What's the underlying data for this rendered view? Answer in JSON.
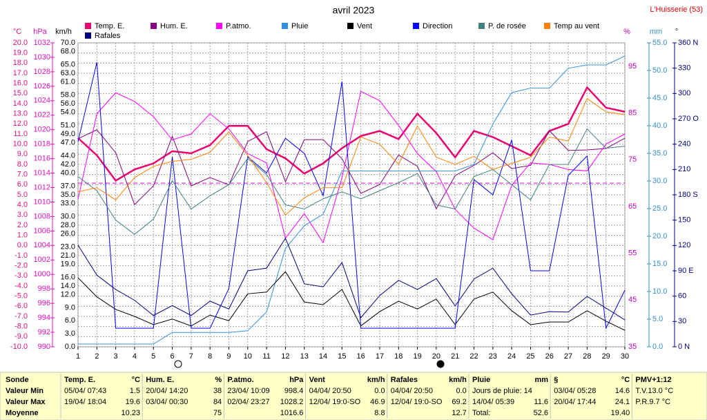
{
  "chart_data": {
    "type": "line",
    "title": "avril 2023",
    "subtitle": "L'Huisserie (53)",
    "x": [
      1,
      2,
      3,
      4,
      5,
      6,
      7,
      8,
      9,
      10,
      11,
      12,
      13,
      14,
      15,
      16,
      17,
      18,
      19,
      20,
      21,
      22,
      23,
      24,
      25,
      26,
      27,
      28,
      29,
      30
    ],
    "xlim": [
      1,
      30
    ],
    "xticks": [
      1,
      2,
      3,
      4,
      5,
      6,
      7,
      8,
      9,
      10,
      11,
      12,
      13,
      14,
      15,
      16,
      17,
      18,
      19,
      20,
      21,
      22,
      23,
      24,
      25,
      26,
      27,
      28,
      29,
      30
    ],
    "grid": true,
    "axes": {
      "temp": {
        "label": "°C",
        "color": "#e0107f",
        "lim": [
          -10,
          20
        ],
        "ticks": [
          {
            "value": -10,
            "label": "-10.0"
          },
          {
            "value": -9,
            "label": "-9.0"
          },
          {
            "value": -8,
            "label": "-8.0"
          },
          {
            "value": -7,
            "label": "-7.0"
          },
          {
            "value": -6,
            "label": "-6.0"
          },
          {
            "value": -5,
            "label": "-5.0"
          },
          {
            "value": -4,
            "label": "-4.0"
          },
          {
            "value": -3,
            "label": "-3.0"
          },
          {
            "value": -2,
            "label": "-2.0"
          },
          {
            "value": -1,
            "label": "-1.0"
          },
          {
            "value": 0,
            "label": "0.0"
          },
          {
            "value": 1,
            "label": "1.0"
          },
          {
            "value": 2,
            "label": "2.0"
          },
          {
            "value": 3,
            "label": "3.0"
          },
          {
            "value": 4,
            "label": "4.0"
          },
          {
            "value": 5,
            "label": "5.0"
          },
          {
            "value": 6,
            "label": "6.0"
          },
          {
            "value": 7,
            "label": "7.0"
          },
          {
            "value": 8,
            "label": "8.0"
          },
          {
            "value": 9,
            "label": "9.0"
          },
          {
            "value": 10,
            "label": "10.0"
          },
          {
            "value": 11,
            "label": "11.0"
          },
          {
            "value": 12,
            "label": "12.0"
          },
          {
            "value": 13,
            "label": "13.0"
          },
          {
            "value": 14,
            "label": "14.0"
          },
          {
            "value": 15,
            "label": "15.0"
          },
          {
            "value": 16,
            "label": "16.0"
          },
          {
            "value": 17,
            "label": "17.0"
          },
          {
            "value": 18,
            "label": "18.0"
          },
          {
            "value": 19,
            "label": "19.0"
          },
          {
            "value": 20,
            "label": "20.0"
          }
        ]
      },
      "hpa": {
        "label": "hPa",
        "color": "#e010c0",
        "lim": [
          990,
          1032
        ],
        "ticks": [
          990,
          992,
          994,
          996,
          998,
          1000,
          1002,
          1004,
          1006,
          1008,
          1010,
          1012,
          1014,
          1016,
          1018,
          1020,
          1022,
          1024,
          1026,
          1028,
          1030,
          1032
        ]
      },
      "kmh": {
        "label": "km/h",
        "color": "#000000",
        "lim": [
          0,
          70
        ],
        "ticks": [
          {
            "value": 0,
            "label": "0.0"
          },
          {
            "value": 3,
            "label": "3.0"
          },
          {
            "value": 6,
            "label": "6.0"
          },
          {
            "value": 9,
            "label": "9.0"
          },
          {
            "value": 12,
            "label": "12.0"
          },
          {
            "value": 14,
            "label": "14.0"
          },
          {
            "value": 16,
            "label": "16.0"
          },
          {
            "value": 19,
            "label": "19.0"
          },
          {
            "value": 21,
            "label": "21.0"
          },
          {
            "value": 23,
            "label": "23.0"
          },
          {
            "value": 26,
            "label": "26.0"
          },
          {
            "value": 28,
            "label": "28.0"
          },
          {
            "value": 30,
            "label": "30.0"
          },
          {
            "value": 33,
            "label": "33.0"
          },
          {
            "value": 35,
            "label": "35.0"
          },
          {
            "value": 37,
            "label": "37.0"
          },
          {
            "value": 40,
            "label": "40.0"
          },
          {
            "value": 42,
            "label": "42.0"
          },
          {
            "value": 44,
            "label": "44.0"
          },
          {
            "value": 47,
            "label": "47.0"
          },
          {
            "value": 49,
            "label": "49.0"
          },
          {
            "value": 51,
            "label": "51.0"
          },
          {
            "value": 54,
            "label": "54.0"
          },
          {
            "value": 56,
            "label": "56.0"
          },
          {
            "value": 58,
            "label": "58.0"
          },
          {
            "value": 61,
            "label": "61.0"
          },
          {
            "value": 63,
            "label": "63.0"
          },
          {
            "value": 65,
            "label": "65.0"
          },
          {
            "value": 68,
            "label": "68.0"
          },
          {
            "value": 70,
            "label": "70.0"
          }
        ]
      },
      "pct": {
        "label": "%",
        "color": "#c000c0",
        "lim": [
          35,
          100
        ],
        "ticks": [
          35,
          45,
          55,
          65,
          75,
          85,
          95
        ]
      },
      "mm": {
        "label": "mm",
        "color": "#3090d0",
        "lim": [
          0,
          55
        ],
        "ticks": [
          {
            "value": 0,
            "label": "0.0"
          },
          {
            "value": 5,
            "label": "5.0"
          },
          {
            "value": 10,
            "label": "10.0"
          },
          {
            "value": 15,
            "label": "15.0"
          },
          {
            "value": 20,
            "label": "20.0"
          },
          {
            "value": 25,
            "label": "25.0"
          },
          {
            "value": 30,
            "label": "30.0"
          },
          {
            "value": 35,
            "label": "35.0"
          },
          {
            "value": 40,
            "label": "40.0"
          },
          {
            "value": 45,
            "label": "45.0"
          },
          {
            "value": 50,
            "label": "50.0"
          },
          {
            "value": 55,
            "label": "55.0"
          }
        ]
      },
      "deg": {
        "label": "°",
        "color": "#000080",
        "lim": [
          0,
          360
        ],
        "ticks": [
          {
            "value": 0,
            "label": "0 N"
          },
          30,
          60,
          {
            "value": 90,
            "label": "90 E"
          },
          120,
          150,
          {
            "value": 180,
            "label": "180 S"
          },
          210,
          240,
          {
            "value": 270,
            "label": "270 O"
          },
          300,
          330,
          {
            "value": 360,
            "label": "360 N"
          }
        ]
      }
    },
    "reference_line": {
      "axis": "pct",
      "value": 70,
      "color": "#e000e0"
    },
    "series": [
      {
        "name": "Temp. E.",
        "color": "#e8006f",
        "axis": "temp",
        "width": 2.5,
        "values": [
          10.6,
          8.9,
          6.4,
          7.5,
          8.1,
          9.3,
          9.1,
          9.9,
          11.8,
          11.8,
          9.5,
          8.6,
          7.1,
          8.1,
          9.6,
          10.8,
          11.3,
          10.5,
          13.0,
          11.1,
          8.7,
          11.3,
          10.7,
          9.8,
          8.9,
          11.3,
          12.0,
          15.6,
          13.6,
          13.2
        ]
      },
      {
        "name": "Hum. E.",
        "color": "#800080",
        "axis": "pct",
        "width": 1,
        "values": [
          79.5,
          81.4,
          76.5,
          65.4,
          69.4,
          80,
          69.4,
          71.2,
          69.6,
          78.9,
          81,
          70.3,
          79.3,
          79.3,
          75.2,
          67.8,
          69.7,
          76,
          73.6,
          64.5,
          71.6,
          73.8,
          76.5,
          73.1,
          73.8,
          81.2,
          77,
          77.1,
          77.4,
          79.6
        ]
      },
      {
        "name": "P.atmo.",
        "color": "#ff00ff",
        "axis": "hpa",
        "width": 1,
        "values": [
          1010.4,
          1022.2,
          1025.1,
          1023.9,
          1021.8,
          1018.6,
          1019.4,
          1022.2,
          1020.1,
          1016.7,
          1015.4,
          1005,
          1008.4,
          1004.4,
          1013.4,
          1025.3,
          1024,
          1020.6,
          1016.7,
          1014.2,
          1009,
          1006.4,
          1004.8,
          1012.3,
          1015.4,
          1015.2,
          1014.5,
          1014.3,
          1018,
          1019.4
        ]
      },
      {
        "name": "Pluie",
        "color": "#3090e0",
        "axis": "mm",
        "width": 1,
        "values": [
          0.5,
          0.5,
          0.5,
          0.5,
          0.5,
          2.6,
          2.6,
          2.6,
          2.6,
          2.9,
          6.3,
          17.8,
          21.9,
          24,
          31.8,
          31.8,
          31.8,
          31.8,
          31.8,
          31.8,
          31.8,
          33,
          40.3,
          46,
          46.8,
          46.8,
          50.4,
          51,
          51,
          52.6
        ]
      },
      {
        "name": "Vent",
        "color": "#000000",
        "axis": "kmh",
        "width": 1,
        "values": [
          15.9,
          11.5,
          8.6,
          7,
          5.1,
          6.4,
          4.8,
          7.3,
          6,
          12.2,
          12.6,
          17.3,
          10.3,
          9.7,
          13.2,
          4.8,
          8.1,
          10.5,
          8.7,
          11,
          5.1,
          11,
          12.6,
          8.3,
          5.1,
          5.7,
          5.7,
          8.3,
          5.9,
          3.8
        ]
      },
      {
        "name": "Direction",
        "color": "#0000ff",
        "axis": "deg",
        "width": 1,
        "values": [
          243,
          337,
          22,
          22,
          22,
          225,
          22,
          22,
          69,
          225,
          206,
          247,
          229,
          179,
          314,
          22,
          22,
          22,
          22,
          22,
          22,
          198,
          180,
          245,
          90,
          90,
          203,
          226,
          22,
          67
        ]
      },
      {
        "name": "P. de rosée",
        "color": "#408080",
        "axis": "temp",
        "width": 1,
        "values": [
          6.8,
          5.4,
          2.5,
          1.1,
          2.6,
          6.4,
          3.6,
          4.9,
          6,
          8.6,
          7,
          4,
          3.6,
          4.6,
          5.3,
          4.6,
          5.4,
          6.2,
          7.1,
          4,
          3.6,
          6.8,
          7.5,
          6,
          4.5,
          8,
          8,
          11.5,
          9.6,
          9.8
        ]
      },
      {
        "name": "Temp au vent",
        "color": "#ff8000",
        "axis": "temp",
        "width": 1,
        "values": [
          5.3,
          5.7,
          4.5,
          6.7,
          7.8,
          8.3,
          8.5,
          9.2,
          11.2,
          8.9,
          6.2,
          3,
          4.7,
          5.7,
          5.7,
          10.7,
          10,
          8,
          11.8,
          8.7,
          8,
          8.8,
          7.5,
          8.1,
          8.7,
          10.7,
          10.3,
          14.5,
          13.2,
          12.9
        ]
      },
      {
        "name": "Rafales",
        "color": "#000080",
        "axis": "kmh",
        "width": 1,
        "values": [
          23.4,
          16.5,
          13.2,
          10.7,
          7.2,
          9.5,
          7.2,
          10.5,
          8.7,
          17.5,
          18.1,
          25,
          14.5,
          13.8,
          19.4,
          6.7,
          11.8,
          15.3,
          13.2,
          15.7,
          9.4,
          15.6,
          18.1,
          12.2,
          7.3,
          8.1,
          8,
          11.6,
          8.9,
          6.2
        ]
      }
    ]
  },
  "summary": {
    "row_labels": [
      "Sonde",
      "Valeur Min",
      "Valeur Max",
      "Moyenne"
    ],
    "columns": [
      {
        "title": "Temp. E.",
        "unit": "°C",
        "rows": [
          {
            "text": "05/04/ 07:43",
            "value": "1.5"
          },
          {
            "text": "19/04/ 18:04",
            "value": "19.6"
          },
          {
            "value": "10.23"
          }
        ]
      },
      {
        "title": "Hum. E.",
        "unit": "%",
        "rows": [
          {
            "text": "20/04/ 14:20",
            "value": "38"
          },
          {
            "text": "03/04/ 00:30",
            "value": "84"
          },
          {
            "value": "75"
          }
        ]
      },
      {
        "title": "P.atmo.",
        "unit": "hPa",
        "rows": [
          {
            "text": "23/04/ 10:09",
            "value": "998.4"
          },
          {
            "text": "02/04/ 23:27",
            "value": "1028.2"
          },
          {
            "value": "1016.6"
          }
        ]
      },
      {
        "title": "Vent",
        "unit": "km/h",
        "rows": [
          {
            "text": "04/04/ 20:50",
            "value": "0.0"
          },
          {
            "text": "12/04/ 19:0-SO",
            "value": "46.9"
          },
          {
            "value": "8.8"
          }
        ]
      },
      {
        "title": "Rafales",
        "unit": "km/h",
        "rows": [
          {
            "text": "04/04/ 20:50",
            "value": "0.0"
          },
          {
            "text": "12/04/ 19:0-SO",
            "value": "69.2"
          },
          {
            "value": "12.7"
          }
        ]
      },
      {
        "title": "Pluie",
        "unit": "mm",
        "rows": [
          {
            "text": "Jours de pluie: 14"
          },
          {
            "text": "14/04/ 05:39",
            "value": "11.6"
          },
          {
            "text": "Total:",
            "value": "52.6"
          }
        ]
      },
      {
        "title": "§",
        "unit": "°C",
        "rows": [
          {
            "text": "03/04/ 05:28",
            "value": "14.6"
          },
          {
            "text": "20/04/ 17:44",
            "value": "24.1"
          },
          {
            "value": "19.40"
          }
        ]
      },
      {
        "title": "PMV+1:12",
        "rows": [
          {
            "text": "T.V.13.0 °C"
          },
          {
            "text": "P.R.9.7 °C"
          }
        ]
      }
    ]
  }
}
